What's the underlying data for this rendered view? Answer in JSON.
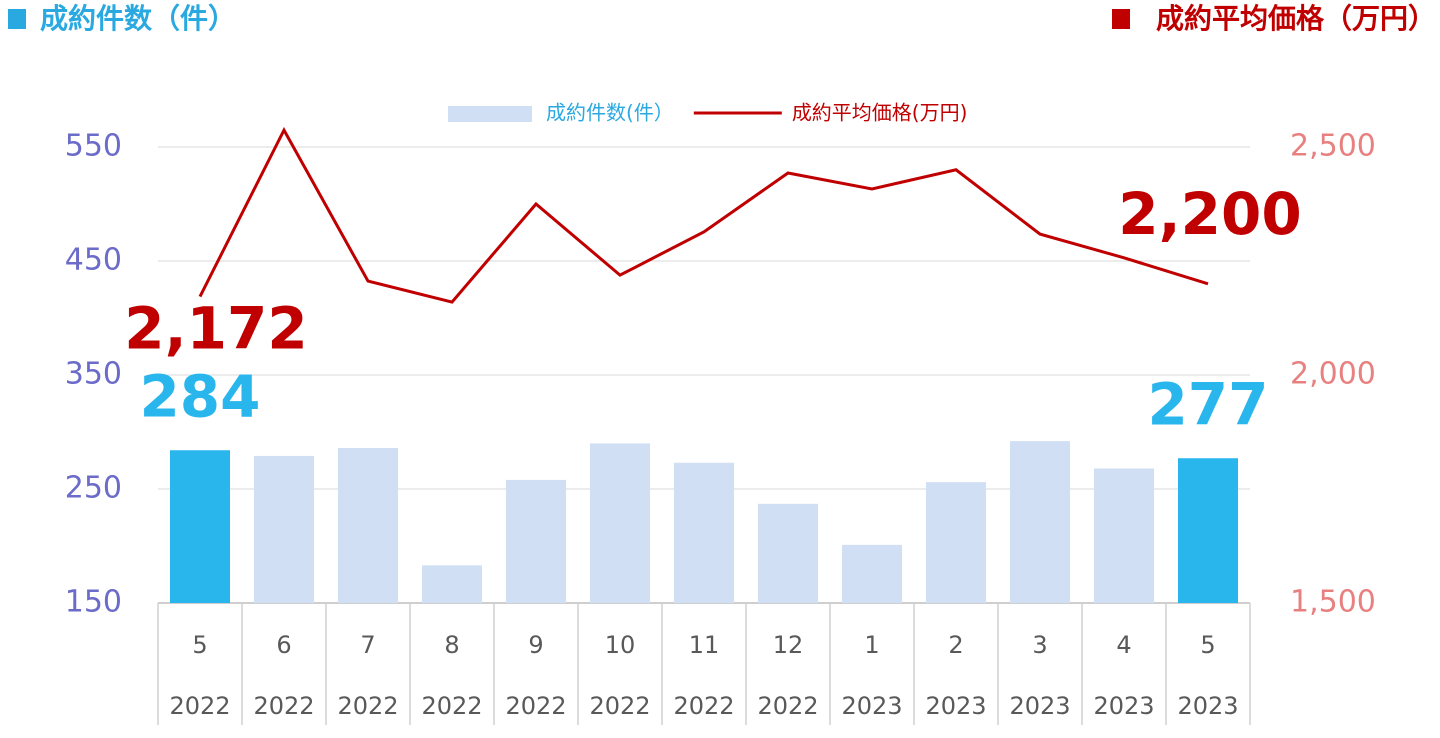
{
  "chart_data": {
    "type": "bar",
    "left_header": "成約件数（件）",
    "left_header_color": "#29a9e0",
    "right_header": "成約平均価格（万円）",
    "right_header_color": "#c00000",
    "categories": [
      "5",
      "6",
      "7",
      "8",
      "9",
      "10",
      "11",
      "12",
      "1",
      "2",
      "3",
      "4",
      "5"
    ],
    "category_years": [
      "2022",
      "2022",
      "2022",
      "2022",
      "2022",
      "2022",
      "2022",
      "2022",
      "2023",
      "2023",
      "2023",
      "2023",
      "2023"
    ],
    "series": [
      {
        "name": "成約件数(件）",
        "type": "bar",
        "axis": "y",
        "color": "#d0dff3",
        "highlight_color": "#29b6ec",
        "values": [
          284,
          279,
          286,
          183,
          258,
          290,
          273,
          237,
          201,
          256,
          292,
          268,
          277
        ],
        "value_labels": [
          "284",
          null,
          null,
          null,
          null,
          null,
          null,
          null,
          null,
          null,
          null,
          null,
          "277"
        ]
      },
      {
        "name": "成約平均価格(万円)",
        "type": "line",
        "axis": "y2",
        "color": "#c00000",
        "values": [
          2172,
          2537,
          2206,
          2160,
          2375,
          2219,
          2314,
          2443,
          2408,
          2450,
          2309,
          2257,
          2200
        ],
        "value_labels": [
          "2,172",
          null,
          null,
          null,
          null,
          null,
          null,
          null,
          null,
          null,
          null,
          null,
          "2,200"
        ]
      }
    ],
    "ylim": [
      150,
      550
    ],
    "yticks": [
      150,
      250,
      350,
      450,
      550
    ],
    "y2lim": [
      1500,
      2500
    ],
    "y2ticks": [
      {
        "value": 1500,
        "label": "1,500"
      },
      {
        "value": 2000,
        "label": "2,000"
      },
      {
        "value": 2500,
        "label": "2,500"
      }
    ],
    "grid": true
  }
}
